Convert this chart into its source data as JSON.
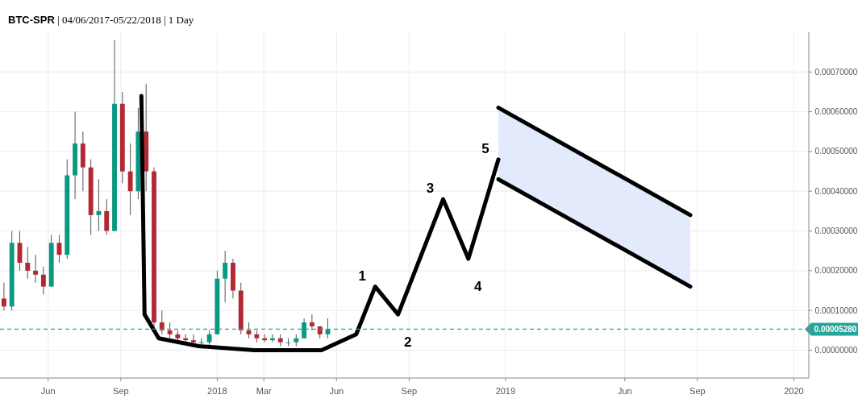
{
  "chart_data": {
    "type": "candlestick",
    "title": "BTC-SPR | 04/06/2017-05/22/2018 | 1 Day",
    "x": [
      "2017-04-06",
      "2017-04-16",
      "2017-04-26",
      "2017-05-06",
      "2017-05-16",
      "2017-05-26",
      "2017-06-05",
      "2017-06-15",
      "2017-06-25",
      "2017-07-05",
      "2017-07-15",
      "2017-07-25",
      "2017-08-04",
      "2017-08-14",
      "2017-08-24",
      "2017-09-03",
      "2017-09-13",
      "2017-09-23",
      "2017-10-03",
      "2017-10-13",
      "2017-10-23",
      "2017-11-02",
      "2017-11-12",
      "2017-11-22",
      "2017-12-02",
      "2017-12-12",
      "2017-12-22",
      "2018-01-01",
      "2018-01-11",
      "2018-01-21",
      "2018-01-31",
      "2018-02-10",
      "2018-02-20",
      "2018-03-02",
      "2018-03-12",
      "2018-03-22",
      "2018-04-01",
      "2018-04-11",
      "2018-04-21",
      "2018-05-01",
      "2018-05-11",
      "2018-05-21"
    ],
    "ohlc": [
      [
        0.00013,
        0.00017,
        0.0001,
        0.00011
      ],
      [
        0.00011,
        0.0003,
        0.0001,
        0.00027
      ],
      [
        0.00027,
        0.0003,
        0.0002,
        0.00022
      ],
      [
        0.00022,
        0.00026,
        0.00018,
        0.0002
      ],
      [
        0.0002,
        0.00024,
        0.00017,
        0.00019
      ],
      [
        0.00019,
        0.00021,
        0.00014,
        0.00016
      ],
      [
        0.00016,
        0.00029,
        0.00016,
        0.00027
      ],
      [
        0.00027,
        0.00029,
        0.00022,
        0.00024
      ],
      [
        0.00024,
        0.00048,
        0.00023,
        0.00044
      ],
      [
        0.00044,
        0.0006,
        0.00038,
        0.00052
      ],
      [
        0.00052,
        0.00055,
        0.0004,
        0.00046
      ],
      [
        0.00046,
        0.00048,
        0.00029,
        0.00034
      ],
      [
        0.00034,
        0.00043,
        0.0003,
        0.00035
      ],
      [
        0.00035,
        0.00038,
        0.00029,
        0.0003
      ],
      [
        0.0003,
        0.00078,
        0.0003,
        0.00062
      ],
      [
        0.00062,
        0.00065,
        0.00042,
        0.00045
      ],
      [
        0.00045,
        0.00052,
        0.00034,
        0.0004
      ],
      [
        0.0004,
        0.00061,
        0.00038,
        0.00055
      ],
      [
        0.00055,
        0.00067,
        0.0004,
        0.00045
      ],
      [
        0.00045,
        0.00046,
        5e-05,
        7e-05
      ],
      [
        7e-05,
        0.0001,
        4e-05,
        5e-05
      ],
      [
        5e-05,
        7e-05,
        3e-05,
        4e-05
      ],
      [
        4e-05,
        5e-05,
        2e-05,
        3e-05
      ],
      [
        3e-05,
        4e-05,
        2e-05,
        2.5e-05
      ],
      [
        2.5e-05,
        4e-05,
        1e-05,
        2e-05
      ],
      [
        2e-05,
        3e-05,
        1e-05,
        2e-05
      ],
      [
        2e-05,
        5e-05,
        1e-05,
        4e-05
      ],
      [
        4e-05,
        0.0002,
        4e-05,
        0.00018
      ],
      [
        0.00018,
        0.00025,
        0.00012,
        0.00022
      ],
      [
        0.00022,
        0.00023,
        0.00013,
        0.00015
      ],
      [
        0.00015,
        0.00017,
        4e-05,
        5e-05
      ],
      [
        5e-05,
        7e-05,
        3e-05,
        4e-05
      ],
      [
        4e-05,
        5e-05,
        2e-05,
        3e-05
      ],
      [
        3e-05,
        4e-05,
        2e-05,
        2.5e-05
      ],
      [
        2.5e-05,
        4e-05,
        2e-05,
        3e-05
      ],
      [
        3e-05,
        4e-05,
        1e-05,
        2e-05
      ],
      [
        2e-05,
        3e-05,
        1e-05,
        2e-05
      ],
      [
        2e-05,
        4e-05,
        1e-05,
        3e-05
      ],
      [
        3e-05,
        8e-05,
        3e-05,
        7e-05
      ],
      [
        7e-05,
        9e-05,
        5e-05,
        6e-05
      ],
      [
        6e-05,
        6e-05,
        3e-05,
        4e-05
      ],
      [
        4e-05,
        8e-05,
        3e-05,
        5.28e-05
      ]
    ],
    "series": [
      {
        "type": "line",
        "color": "#000000",
        "x": [
          "2017-09-27",
          "2017-10-01",
          "2017-10-19",
          "2017-12-09",
          "2018-02-17",
          "2018-05-13",
          "2018-06-26",
          "2018-07-20",
          "2018-08-18",
          "2018-10-14",
          "2018-11-15",
          "2018-12-23"
        ],
        "values": [
          0.00064,
          9e-05,
          3e-05,
          1e-05,
          0,
          0,
          4e-05,
          0.00016,
          9e-05,
          0.00038,
          0.00023,
          0.00048
        ]
      },
      {
        "type": "line",
        "color": "#000000",
        "x": [
          "2018-12-23",
          "2019-08-23"
        ],
        "values": [
          0.00061,
          0.00034
        ],
        "lower": [
          0.00043,
          0.00016
        ],
        "upper": [
          0.00061,
          0.00034
        ]
      },
      {
        "type": "line",
        "color": "#000000",
        "x": [
          "2018-12-23",
          "2019-08-23"
        ],
        "values": [
          0.00043,
          0.00016
        ]
      }
    ],
    "annotations": [
      {
        "text": "1",
        "x": "2018-07-20",
        "y": 0.00016
      },
      {
        "text": "2",
        "x": "2018-08-18",
        "y": 9e-05
      },
      {
        "text": "3",
        "x": "2018-10-14",
        "y": 0.00038
      },
      {
        "text": "4",
        "x": "2018-11-15",
        "y": 0.00023
      },
      {
        "text": "5",
        "x": "2018-12-23",
        "y": 0.00048
      }
    ],
    "ref_lines": [
      {
        "axis": "y",
        "value": 5.28e-05,
        "label": "0.00005280",
        "color": "#26a69a",
        "line_style": "dashed"
      }
    ],
    "xlim": [
      "2017-04-01",
      "2020-01-20"
    ],
    "xticks": [
      {
        "value": "2017-06-01",
        "label": "Jun"
      },
      {
        "value": "2017-09-01",
        "label": "Sep"
      },
      {
        "value": "2018-01-01",
        "label": "2018"
      },
      {
        "value": "2018-03-01",
        "label": "Mar"
      },
      {
        "value": "2018-06-01",
        "label": "Jun"
      },
      {
        "value": "2018-09-01",
        "label": "Sep"
      },
      {
        "value": "2019-01-01",
        "label": "2019"
      },
      {
        "value": "2019-06-01",
        "label": "Jun"
      },
      {
        "value": "2019-09-01",
        "label": "Sep"
      },
      {
        "value": "2020-01-01",
        "label": "2020"
      }
    ],
    "ylim": [
      -7e-05,
      0.0008
    ],
    "yticks": [
      {
        "value": 0,
        "label": "0.00000000"
      },
      {
        "value": 0.0001,
        "label": "0.00010000"
      },
      {
        "value": 0.0002,
        "label": "0.00020000"
      },
      {
        "value": 0.0003,
        "label": "0.00030000"
      },
      {
        "value": 0.0004,
        "label": "0.00040000"
      },
      {
        "value": 0.0005,
        "label": "0.00050000"
      },
      {
        "value": 0.0006,
        "label": "0.00060000"
      },
      {
        "value": 0.0007,
        "label": "0.00070000"
      }
    ],
    "grid": true
  }
}
